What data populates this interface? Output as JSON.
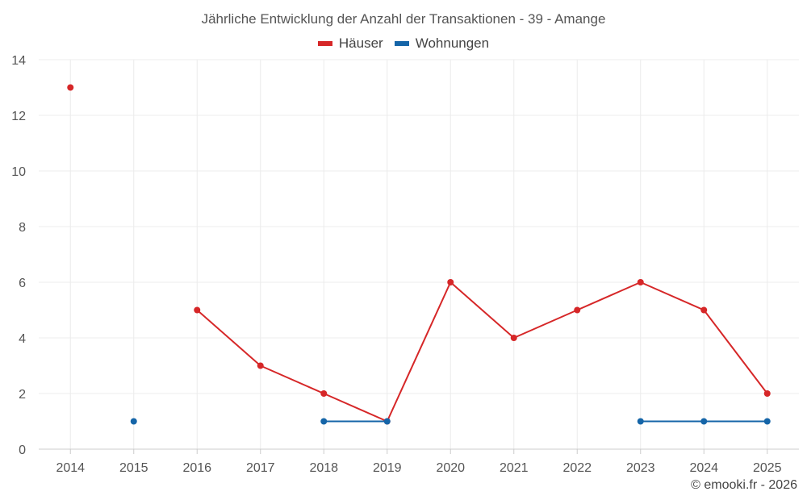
{
  "chart_data": {
    "type": "line",
    "title": "Jährliche Entwicklung der Anzahl der Transaktionen - 39 - Amange",
    "categories": [
      "2014",
      "2015",
      "2016",
      "2017",
      "2018",
      "2019",
      "2020",
      "2021",
      "2022",
      "2023",
      "2024",
      "2025"
    ],
    "series": [
      {
        "name": "Häuser",
        "color": "#d62728",
        "values": [
          13,
          null,
          5,
          3,
          2,
          1,
          6,
          4,
          5,
          6,
          5,
          2
        ]
      },
      {
        "name": "Wohnungen",
        "color": "#1565a8",
        "values": [
          null,
          1,
          null,
          null,
          1,
          1,
          null,
          null,
          null,
          1,
          1,
          1
        ]
      }
    ],
    "ylim": [
      0,
      14
    ],
    "yticks": [
      0,
      2,
      4,
      6,
      8,
      10,
      12,
      14
    ],
    "xlabel": "",
    "ylabel": "",
    "grid": true,
    "legend_position": "top-center"
  },
  "copyright": "© emooki.fr - 2026"
}
